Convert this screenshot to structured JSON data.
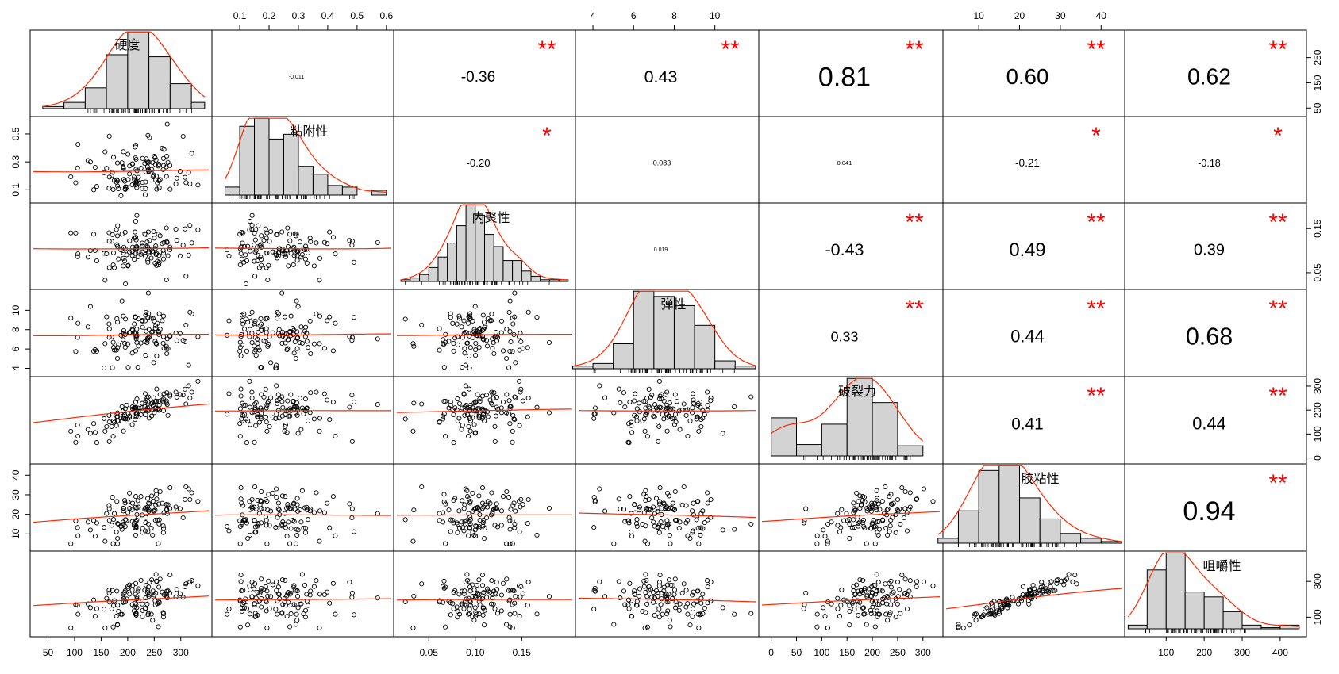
{
  "chart_data": {
    "type": "scatter_matrix",
    "variables": [
      "硬度",
      "粘附性",
      "内聚性",
      "弹性",
      "破裂力",
      "胶粘性",
      "咀嚼性"
    ],
    "ranges": [
      [
        30,
        345
      ],
      [
        0.03,
        0.6
      ],
      [
        0.02,
        0.2
      ],
      [
        3.5,
        11.8
      ],
      [
        -10,
        325
      ],
      [
        3,
        44
      ],
      [
        10,
        450
      ]
    ],
    "ticks": [
      [
        "50",
        "100",
        "150",
        "200",
        "250",
        "300"
      ],
      [
        "0.1",
        "0.2",
        "0.3",
        "0.4",
        "0.5",
        "0.6"
      ],
      [
        "0.05",
        "0.10",
        "0.15"
      ],
      [
        "4",
        "6",
        "8",
        "10"
      ],
      [
        "0",
        "50",
        "100",
        "150",
        "200",
        "250",
        "300"
      ],
      [
        "10",
        "20",
        "30",
        "40"
      ],
      [
        "100",
        "200",
        "300",
        "400"
      ]
    ],
    "diag_axis_ticks": [
      [
        "50",
        "150",
        "250"
      ],
      [
        "0.1",
        "0.3",
        "0.5"
      ],
      [
        "0.05",
        "0.15"
      ],
      [
        "4",
        "6",
        "8",
        "10"
      ],
      [
        "0",
        "100",
        "200",
        "300"
      ],
      [
        "10",
        "20",
        "30",
        "40"
      ],
      [
        "100",
        "300"
      ]
    ],
    "histograms": [
      {
        "edges": [
          40,
          80,
          120,
          160,
          200,
          240,
          280,
          320,
          345
        ],
        "counts": [
          1,
          3,
          10,
          26,
          37,
          25,
          12,
          3
        ]
      },
      {
        "edges": [
          0.05,
          0.1,
          0.15,
          0.2,
          0.25,
          0.3,
          0.35,
          0.4,
          0.45,
          0.5,
          0.55,
          0.6
        ],
        "counts": [
          5,
          43,
          48,
          35,
          38,
          18,
          13,
          6,
          5,
          0,
          3
        ]
      },
      {
        "edges": [
          0.02,
          0.03,
          0.04,
          0.05,
          0.06,
          0.07,
          0.08,
          0.09,
          0.1,
          0.11,
          0.12,
          0.13,
          0.14,
          0.15,
          0.16,
          0.17,
          0.18,
          0.19,
          0.2
        ],
        "counts": [
          1,
          2,
          4,
          8,
          14,
          22,
          32,
          44,
          38,
          27,
          20,
          12,
          12,
          6,
          3,
          1,
          1,
          1
        ]
      },
      {
        "edges": [
          3,
          4,
          5,
          6,
          7,
          8,
          9,
          10,
          11,
          12
        ],
        "counts": [
          2,
          4,
          19,
          59,
          55,
          48,
          33,
          6,
          2
        ]
      },
      {
        "edges": [
          0,
          50,
          100,
          150,
          200,
          250,
          300
        ],
        "counts": [
          30,
          9,
          25,
          61,
          42,
          8
        ]
      },
      {
        "edges": [
          0,
          5,
          10,
          15,
          20,
          25,
          30,
          35,
          40,
          45
        ],
        "counts": [
          3,
          20,
          45,
          48,
          28,
          15,
          6,
          3,
          1
        ]
      },
      {
        "edges": [
          0,
          50,
          100,
          150,
          200,
          250,
          300,
          350,
          400,
          450
        ],
        "counts": [
          3,
          48,
          62,
          30,
          26,
          14,
          3,
          1,
          3
        ]
      }
    ],
    "correlations": [
      [
        null,
        "-0.011",
        "-0.36",
        "0.43",
        "0.81",
        "0.60",
        "0.62"
      ],
      [
        null,
        null,
        "-0.20",
        "-0.083",
        "0.041",
        "-0.21",
        "-0.18"
      ],
      [
        null,
        null,
        null,
        "0.019",
        "-0.43",
        "0.49",
        "0.39"
      ],
      [
        null,
        null,
        null,
        null,
        "0.33",
        "0.44",
        "0.68"
      ],
      [
        null,
        null,
        null,
        null,
        null,
        "0.41",
        "0.44"
      ],
      [
        null,
        null,
        null,
        null,
        null,
        null,
        "0.94"
      ]
    ],
    "significance": [
      [
        null,
        "",
        "**",
        "**",
        "**",
        "**",
        "**"
      ],
      [
        null,
        null,
        "*",
        "",
        "",
        "*",
        "*"
      ],
      [
        null,
        null,
        null,
        "",
        "**",
        "**",
        "**"
      ],
      [
        null,
        null,
        null,
        null,
        "**",
        "**",
        "**"
      ],
      [
        null,
        null,
        null,
        null,
        null,
        "**",
        "**"
      ],
      [
        null,
        null,
        null,
        null,
        null,
        null,
        "**"
      ]
    ],
    "colors": {
      "hist_fill": "#d3d3d3",
      "fit_line": "#ff2a00",
      "stars": "#ff0000",
      "points": "#000000",
      "frame": "#000000"
    }
  }
}
